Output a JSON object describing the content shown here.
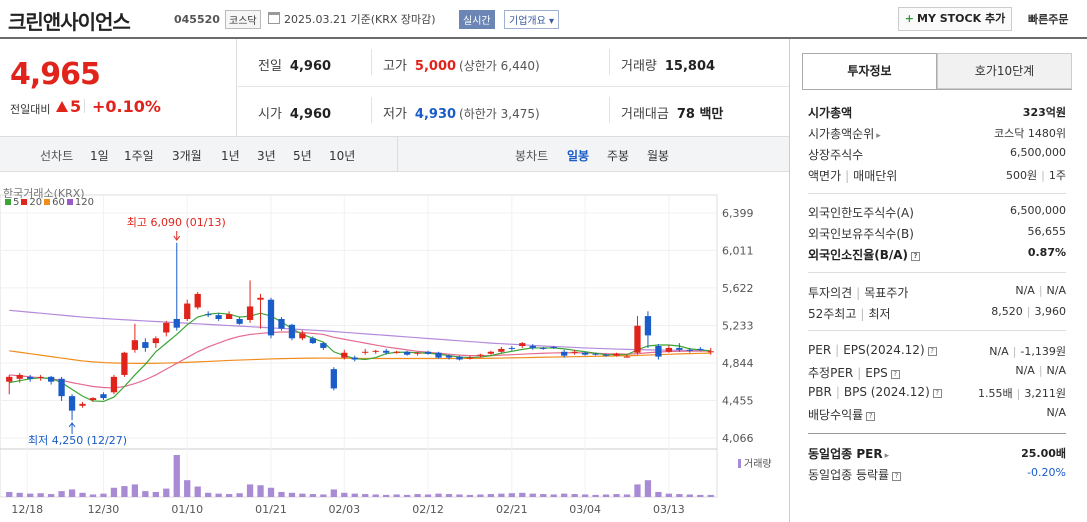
{
  "header": {
    "name": "크린앤사이언스",
    "code": "045520",
    "market": "코스닥",
    "date_text": "2025.03.21  기준(KRX 장마감)",
    "realtime": "실시간",
    "company": "기업개요 ▾",
    "mystock": "MY STOCK 추가",
    "quick_order": "빠른주문"
  },
  "price": {
    "current": "4,965",
    "change_label": "전일대비",
    "change": "5",
    "percent": "+0.10%"
  },
  "stats": {
    "prev_label": "전일",
    "prev": "4,960",
    "high_label": "고가",
    "high": "5,000",
    "upper": "(상한가 6,440)",
    "volume_label": "거래량",
    "volume": "15,804",
    "open_label": "시가",
    "open": "4,960",
    "low_label": "저가",
    "low": "4,930",
    "lower": "(하한가 3,475)",
    "amount_label": "거래대금",
    "amount": "78 백만"
  },
  "toolbar": {
    "line_label": "선차트",
    "periods": [
      "1일",
      "1주일",
      "3개월",
      "1년",
      "3년",
      "5년",
      "10년"
    ],
    "candle_label": "봉차트",
    "candles": [
      "일봉",
      "주봉",
      "월봉"
    ],
    "active_candle": "일봉"
  },
  "chart_data": {
    "type": "candlestick",
    "exchange": "한국거래소(KRX)",
    "ma_legend": [
      {
        "name": "5",
        "color": "#3aa534"
      },
      {
        "name": "20",
        "color": "#e0241b"
      },
      {
        "name": "60",
        "color": "#f08c1e"
      },
      {
        "name": "120",
        "color": "#9b59c9"
      }
    ],
    "y_ticks": [
      "6,399",
      "6,011",
      "5,622",
      "5,233",
      "4,844",
      "4,455",
      "4,066"
    ],
    "y_tick_values": [
      6399,
      6011,
      5622,
      5233,
      4844,
      4455,
      4066
    ],
    "x_ticks": [
      "12/18",
      "12/30",
      "01/10",
      "01/21",
      "02/03",
      "02/12",
      "02/21",
      "03/04",
      "03/13"
    ],
    "high_annotation": "최고 6,090 (01/13)",
    "low_annotation": "최저 4,250 (12/27)",
    "volume_label": "거래량",
    "candles": [
      [
        4650,
        4700,
        4520,
        4720
      ],
      [
        4680,
        4720,
        4640,
        4740
      ],
      [
        4700,
        4680,
        4650,
        4720
      ],
      [
        4690,
        4700,
        4660,
        4720
      ],
      [
        4700,
        4650,
        4620,
        4710
      ],
      [
        4680,
        4500,
        4450,
        4700
      ],
      [
        4500,
        4350,
        4250,
        4520
      ],
      [
        4400,
        4420,
        4380,
        4440
      ],
      [
        4460,
        4480,
        4440,
        4490
      ],
      [
        4520,
        4480,
        4460,
        4540
      ],
      [
        4540,
        4700,
        4520,
        4720
      ],
      [
        4720,
        4950,
        4700,
        4960
      ],
      [
        4980,
        5080,
        4950,
        5250
      ],
      [
        5060,
        5000,
        4960,
        5100
      ],
      [
        5050,
        5100,
        5000,
        5120
      ],
      [
        5160,
        5260,
        5120,
        5280
      ],
      [
        5300,
        5210,
        5180,
        6090
      ],
      [
        5300,
        5460,
        5280,
        5500
      ],
      [
        5420,
        5560,
        5400,
        5580
      ],
      [
        5350,
        5340,
        5320,
        5380
      ],
      [
        5340,
        5300,
        5280,
        5360
      ],
      [
        5300,
        5350,
        5300,
        5380
      ],
      [
        5300,
        5250,
        5240,
        5320
      ],
      [
        5290,
        5430,
        5260,
        5700
      ],
      [
        5500,
        5520,
        5200,
        5560
      ],
      [
        5500,
        5130,
        5100,
        5520
      ],
      [
        5300,
        5200,
        5180,
        5320
      ],
      [
        5240,
        5100,
        5080,
        5250
      ],
      [
        5100,
        5150,
        5080,
        5180
      ],
      [
        5100,
        5050,
        5040,
        5120
      ],
      [
        5050,
        5000,
        4980,
        5060
      ],
      [
        4780,
        4580,
        4560,
        4800
      ],
      [
        4900,
        4950,
        4880,
        4980
      ],
      [
        4900,
        4880,
        4860,
        4920
      ],
      [
        4950,
        4960,
        4930,
        4990
      ],
      [
        4960,
        4970,
        4940,
        4980
      ],
      [
        4970,
        4950,
        4930,
        4990
      ],
      [
        4950,
        4960,
        4940,
        4970
      ],
      [
        4960,
        4930,
        4920,
        4970
      ],
      [
        4940,
        4950,
        4920,
        4960
      ],
      [
        4960,
        4940,
        4930,
        4970
      ],
      [
        4950,
        4900,
        4890,
        4960
      ],
      [
        4920,
        4900,
        4880,
        4930
      ],
      [
        4910,
        4880,
        4870,
        4920
      ],
      [
        4900,
        4900,
        4880,
        4920
      ],
      [
        4920,
        4930,
        4900,
        4940
      ],
      [
        4940,
        4960,
        4930,
        4970
      ],
      [
        4960,
        4990,
        4950,
        5010
      ],
      [
        5000,
        4990,
        4970,
        5020
      ],
      [
        5020,
        5050,
        5000,
        5060
      ],
      [
        5020,
        5000,
        4980,
        5040
      ],
      [
        5000,
        4990,
        4980,
        5010
      ],
      [
        5010,
        5000,
        4990,
        5020
      ],
      [
        4960,
        4920,
        4900,
        4980
      ],
      [
        4950,
        4960,
        4930,
        4980
      ],
      [
        4950,
        4930,
        4920,
        4960
      ],
      [
        4940,
        4930,
        4920,
        4950
      ],
      [
        4930,
        4920,
        4910,
        4940
      ],
      [
        4920,
        4940,
        4910,
        4950
      ],
      [
        4910,
        4910,
        4900,
        4930
      ],
      [
        4950,
        5230,
        4930,
        5330
      ],
      [
        5330,
        5130,
        5000,
        5380
      ],
      [
        5020,
        4910,
        4880,
        5040
      ],
      [
        4960,
        5000,
        4950,
        5030
      ],
      [
        5000,
        4980,
        4960,
        5050
      ],
      [
        4980,
        4970,
        4950,
        5000
      ],
      [
        4990,
        4980,
        4970,
        5010
      ],
      [
        4960,
        4965,
        4930,
        5000
      ]
    ],
    "volumes": [
      12,
      10,
      8,
      9,
      7,
      14,
      18,
      10,
      6,
      8,
      22,
      26,
      30,
      14,
      12,
      20,
      100,
      40,
      25,
      10,
      8,
      7,
      9,
      30,
      28,
      22,
      12,
      10,
      8,
      7,
      6,
      18,
      10,
      8,
      7,
      6,
      5,
      6,
      5,
      7,
      6,
      8,
      7,
      6,
      5,
      6,
      7,
      8,
      9,
      10,
      8,
      7,
      6,
      8,
      7,
      6,
      5,
      6,
      7,
      6,
      30,
      40,
      12,
      8,
      7,
      6,
      5,
      5
    ],
    "ma5": [
      4640,
      4660,
      4680,
      4690,
      4685,
      4640,
      4570,
      4500,
      4450,
      4445,
      4490,
      4600,
      4720,
      4830,
      4960,
      5050,
      5140,
      5240,
      5320,
      5350,
      5360,
      5350,
      5320,
      5330,
      5360,
      5330,
      5270,
      5200,
      5140,
      5100,
      5060,
      4960,
      4920,
      4890,
      4880,
      4900,
      4940,
      4955,
      4955,
      4950,
      4945,
      4935,
      4920,
      4905,
      4900,
      4905,
      4920,
      4945,
      4965,
      4985,
      5000,
      5000,
      5000,
      4990,
      4975,
      4960,
      4945,
      4930,
      4930,
      4930,
      4980,
      5020,
      5030,
      5030,
      5020,
      4990,
      4980,
      4970
    ],
    "ma20": [
      4720,
      4710,
      4700,
      4690,
      4680,
      4665,
      4640,
      4620,
      4600,
      4590,
      4585,
      4600,
      4630,
      4670,
      4720,
      4780,
      4840,
      4900,
      4960,
      5010,
      5050,
      5090,
      5120,
      5140,
      5150,
      5160,
      5165,
      5165,
      5160,
      5150,
      5140,
      5110,
      5090,
      5070,
      5050,
      5030,
      5010,
      4995,
      4980,
      4965,
      4955,
      4945,
      4935,
      4925,
      4920,
      4920,
      4920,
      4925,
      4930,
      4935,
      4940,
      4945,
      4948,
      4950,
      4950,
      4948,
      4945,
      4940,
      4938,
      4936,
      4940,
      4950,
      4958,
      4962,
      4965,
      4966,
      4967,
      4968
    ],
    "ma60": [
      4970,
      4955,
      4940,
      4925,
      4910,
      4895,
      4880,
      4865,
      4855,
      4848,
      4844,
      4842,
      4840,
      4840,
      4841,
      4843,
      4846,
      4850,
      4855,
      4860,
      4865,
      4870,
      4874,
      4878,
      4882,
      4886,
      4889,
      4891,
      4893,
      4894,
      4895,
      4894,
      4893,
      4892,
      4891,
      4890,
      4890,
      4890,
      4890,
      4890,
      4890,
      4890,
      4890,
      4890,
      4891,
      4892,
      4893,
      4895,
      4897,
      4899,
      4901,
      4903,
      4905,
      4907,
      4909,
      4911,
      4913,
      4915,
      4917,
      4919,
      4922,
      4926,
      4930,
      4934,
      4938,
      4941,
      4944,
      4946
    ],
    "ma120": [
      5390,
      5380,
      5370,
      5360,
      5350,
      5340,
      5330,
      5320,
      5312,
      5305,
      5298,
      5292,
      5286,
      5280,
      5274,
      5268,
      5262,
      5256,
      5250,
      5244,
      5238,
      5232,
      5226,
      5220,
      5214,
      5208,
      5202,
      5196,
      5190,
      5184,
      5178,
      5170,
      5162,
      5154,
      5146,
      5138,
      5130,
      5122,
      5114,
      5106,
      5098,
      5090,
      5082,
      5074,
      5066,
      5058,
      5050,
      5044,
      5038,
      5032,
      5026,
      5020,
      5015,
      5010,
      5005,
      5000,
      4996,
      4992,
      4988,
      4985,
      4982,
      4980,
      4978,
      4976,
      4975,
      4974,
      4973,
      4972
    ]
  },
  "panel": {
    "tab_invest": "투자정보",
    "tab_hoga": "호가10단계",
    "mcap_label": "시가총액",
    "mcap": "323억원",
    "mcap_rank_label": "시가총액순위",
    "mcap_rank": "코스닥 1480위",
    "shares_label": "상장주식수",
    "shares": "6,500,000",
    "par_label": "액면가",
    "unit_label": "매매단위",
    "par": "500원",
    "unit": "1주",
    "foreign_limit_label": "외국인한도주식수(A)",
    "foreign_limit": "6,500,000",
    "foreign_hold_label": "외국인보유주식수(B)",
    "foreign_hold": "56,655",
    "foreign_ratio_label": "외국인소진율(B/A)",
    "foreign_ratio": "0.87%",
    "opinion_label": "투자의견",
    "target_label": "목표주가",
    "opinion": "N/A",
    "target": "N/A",
    "w52_label": "52주최고",
    "w52_low_label": "최저",
    "w52_high": "8,520",
    "w52_low": "3,960",
    "per_label": "PER",
    "eps_label": "EPS(2024.12)",
    "per": "N/A",
    "eps": "-1,139원",
    "est_per_label": "추정PER",
    "est_eps_label": "EPS",
    "est_per": "N/A",
    "est_eps": "N/A",
    "pbr_label": "PBR",
    "bps_label": "BPS (2024.12)",
    "pbr": "1.55배",
    "bps": "3,211원",
    "div_label": "배당수익률",
    "div": "N/A",
    "ind_per_label": "동일업종 PER",
    "ind_per": "25.00배",
    "ind_rate_label": "동일업종 등락률",
    "ind_rate": "-0.20%"
  }
}
